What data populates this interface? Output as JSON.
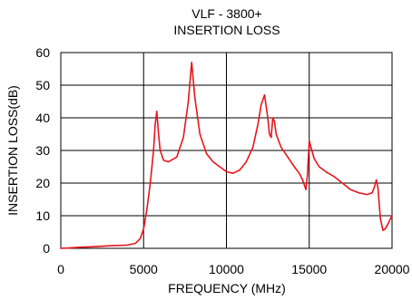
{
  "chart_data": {
    "type": "line",
    "title": "VLF - 3800+",
    "subtitle": "INSERTION LOSS",
    "xlabel": "FREQUENCY (MHz)",
    "ylabel": "INSERTION LOSS(dB)",
    "xlim": [
      0,
      20000
    ],
    "ylim": [
      0,
      60
    ],
    "xticks": [
      0,
      5000,
      10000,
      15000,
      20000
    ],
    "yticks": [
      0,
      10,
      20,
      30,
      40,
      50,
      60
    ],
    "grid": true,
    "series": [
      {
        "color": "#e8141b",
        "x": [
          0,
          500,
          1000,
          2000,
          3000,
          4000,
          4500,
          4800,
          5000,
          5200,
          5400,
          5600,
          5700,
          5800,
          5900,
          6000,
          6200,
          6500,
          7000,
          7400,
          7700,
          7900,
          8100,
          8400,
          8800,
          9200,
          9600,
          10000,
          10400,
          10800,
          11200,
          11600,
          11900,
          12100,
          12300,
          12500,
          12600,
          12700,
          12800,
          12900,
          13000,
          13300,
          13700,
          14100,
          14400,
          14600,
          14800,
          14900,
          15000,
          15100,
          15300,
          15600,
          16000,
          16500,
          17000,
          17500,
          18000,
          18500,
          18800,
          18950,
          19050,
          19150,
          19300,
          19450,
          19600,
          19800,
          20000
        ],
        "y": [
          0,
          0.1,
          0.3,
          0.5,
          0.8,
          1.0,
          1.5,
          3,
          6,
          12,
          20,
          30,
          38,
          42,
          35,
          30,
          27,
          26.5,
          28,
          34,
          45,
          57,
          46,
          35,
          29,
          26.5,
          25,
          23.5,
          23,
          24,
          26.5,
          31,
          38,
          44,
          47,
          40,
          35,
          34,
          40,
          39,
          35,
          31,
          28,
          25,
          23,
          21,
          18,
          23,
          33,
          31,
          27.5,
          25,
          23.5,
          22,
          20,
          18,
          17,
          16.5,
          17,
          19,
          21,
          18.5,
          9,
          5.5,
          6,
          8,
          10
        ]
      }
    ]
  }
}
